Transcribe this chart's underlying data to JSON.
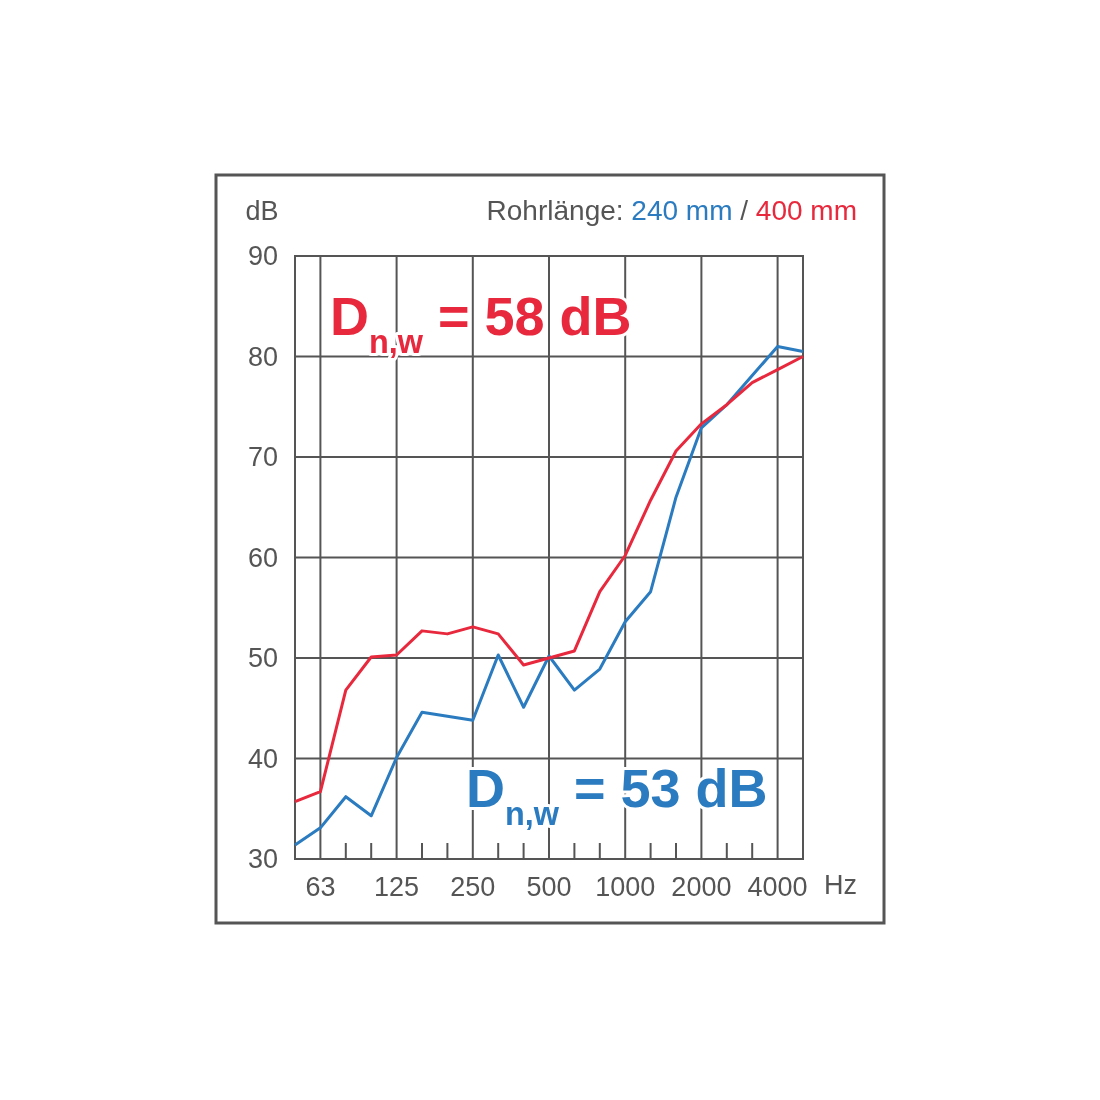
{
  "chart_data": {
    "type": "line",
    "ylabel": "dB",
    "xlabel": "Hz",
    "legend_title": "Rohrlänge:",
    "legend": "top right",
    "grid": true,
    "marker": "none",
    "line_style": "solid",
    "categories": [
      null,
      "63",
      null,
      null,
      "125",
      null,
      null,
      "250",
      null,
      null,
      "500",
      null,
      null,
      "1000",
      null,
      null,
      "2000",
      null,
      null,
      "4000",
      null
    ],
    "ylim": [
      30,
      90
    ],
    "yticks": [
      30,
      40,
      50,
      60,
      70,
      80,
      90
    ],
    "series": [
      {
        "name": "240 mm",
        "color": "#2a7bbf",
        "values": [
          31.4,
          33.1,
          36.2,
          34.3,
          40.1,
          44.6,
          44.2,
          43.8,
          50.3,
          45.1,
          50.2,
          46.8,
          48.9,
          53.6,
          56.6,
          66.0,
          72.9,
          75.2,
          78.1,
          81.0,
          80.5
        ]
      },
      {
        "name": "400 mm",
        "color": "#e8283c",
        "values": [
          35.7,
          36.7,
          46.8,
          50.1,
          50.3,
          52.7,
          52.4,
          53.1,
          52.4,
          49.3,
          50.0,
          50.7,
          56.6,
          60.2,
          65.7,
          70.6,
          73.3,
          75.2,
          77.4,
          78.7,
          80.0
        ]
      }
    ],
    "annotations": [
      "D$_{n,w}$ = 53 dB",
      "D$_{n,w}$ = 58 dB",
      "/"
    ]
  }
}
